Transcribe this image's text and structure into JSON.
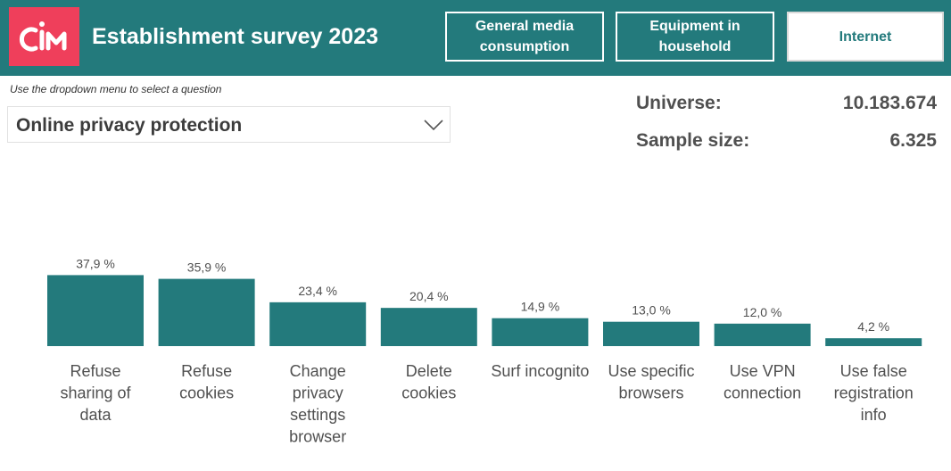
{
  "header": {
    "logo_text": "CIM",
    "title": "Establishment survey 2023",
    "nav": [
      {
        "label": "General media consumption",
        "lines": [
          "General media",
          "consumption"
        ],
        "active": false
      },
      {
        "label": "Equipment in household",
        "lines": [
          "Equipment in",
          "household"
        ],
        "active": false
      },
      {
        "label": "Internet",
        "lines": [
          "Internet"
        ],
        "active": true
      }
    ]
  },
  "selector": {
    "hint": "Use the dropdown menu to select a question",
    "value": "Online privacy protection",
    "icon": "chevron-down-icon"
  },
  "kpis": {
    "universe_label": "Universe:",
    "universe_value": "10.183.674",
    "sample_label": "Sample size:",
    "sample_value": "6.325"
  },
  "colors": {
    "brand": "#237a7c",
    "logo": "#ef3f5b",
    "bar": "#237a7c",
    "text": "#505050"
  },
  "chart_data": {
    "type": "bar",
    "categories": [
      [
        "Refuse",
        "sharing of",
        "data"
      ],
      [
        "Refuse",
        "cookies"
      ],
      [
        "Change",
        "privacy",
        "settings",
        "browser"
      ],
      [
        "Delete",
        "cookies"
      ],
      [
        "Surf incognito"
      ],
      [
        "Use specific",
        "browsers"
      ],
      [
        "Use VPN",
        "connection"
      ],
      [
        "Use false",
        "registration",
        "info"
      ]
    ],
    "values": [
      37.9,
      35.9,
      23.4,
      20.4,
      14.9,
      13.0,
      12.0,
      4.2
    ],
    "value_labels": [
      "37,9 %",
      "35,9 %",
      "23,4 %",
      "20,4 %",
      "14,9 %",
      "13,0 %",
      "12,0 %",
      "4,2 %"
    ],
    "title": "",
    "xlabel": "",
    "ylabel": "",
    "ylim": [
      0,
      40
    ],
    "grid": false,
    "legend": "none"
  }
}
